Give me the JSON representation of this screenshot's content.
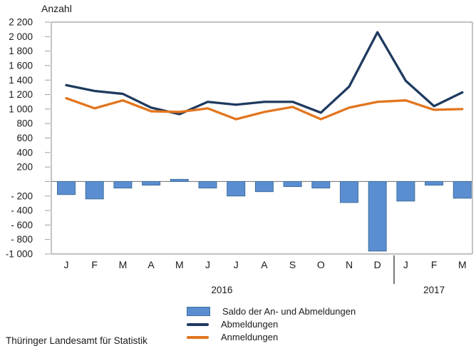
{
  "source": "Thüringer Landesamt für Statistik",
  "colors": {
    "bar_fill": "#5B8DD1",
    "bar_border": "#41719C",
    "abmeldungen_line": "#1F3A5F",
    "anmeldungen_line": "#E2751E",
    "axis_line": "#9E9E9E",
    "zero_line": "#808080",
    "divider_line": "#404040",
    "text": "#1A1A1A"
  },
  "legend": {
    "items": [
      {
        "label": "Saldo der An- und Abmeldungen",
        "swatch": "bar"
      },
      {
        "label": "Abmeldungen",
        "swatch": "line-dark"
      },
      {
        "label": "Anmeldungen",
        "swatch": "line-orange"
      }
    ]
  },
  "chart_data": {
    "type": "combo-bar-line",
    "ylabel": "Anzahl",
    "ylim": [
      -1000,
      2200
    ],
    "ytick_step": 200,
    "grid": "off",
    "legend_position": "bottom",
    "categories": [
      "J",
      "F",
      "M",
      "A",
      "M",
      "J",
      "J",
      "A",
      "S",
      "O",
      "N",
      "D",
      "J",
      "F",
      "M"
    ],
    "year_groups": [
      {
        "label": "2016",
        "span": [
          0,
          11
        ]
      },
      {
        "label": "2017",
        "span": [
          12,
          14
        ]
      }
    ],
    "series": [
      {
        "name": "Saldo der An- und Abmeldungen",
        "type": "bar",
        "values": [
          -180,
          -240,
          -90,
          -50,
          30,
          -90,
          -200,
          -140,
          -70,
          -90,
          -290,
          -960,
          -270,
          -50,
          -230
        ]
      },
      {
        "name": "Abmeldungen",
        "type": "line",
        "values": [
          1330,
          1250,
          1210,
          1020,
          930,
          1100,
          1060,
          1100,
          1100,
          950,
          1310,
          2060,
          1390,
          1040,
          1230
        ]
      },
      {
        "name": "Anmeldungen",
        "type": "line",
        "values": [
          1150,
          1010,
          1120,
          970,
          960,
          1010,
          860,
          960,
          1030,
          860,
          1020,
          1100,
          1120,
          990,
          1000
        ]
      }
    ]
  }
}
